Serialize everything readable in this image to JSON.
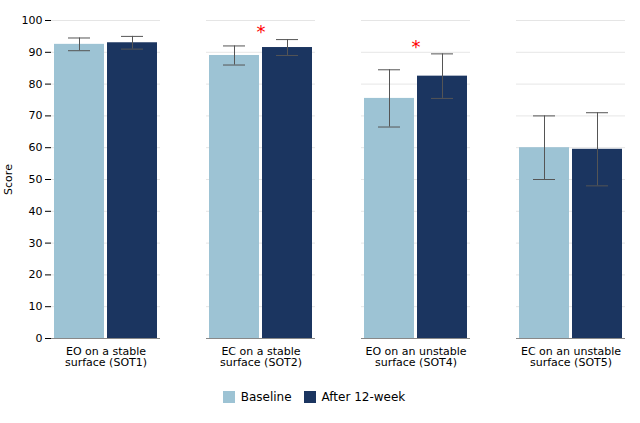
{
  "chart_data": {
    "type": "bar",
    "categories": [
      "EO on a stable\nsurface (SOT1)",
      "EC on a stable\nsurface (SOT2)",
      "EO on an unstable\nsurface (SOT4)",
      "EC on an unstable\nsurface (SOT5)"
    ],
    "series": [
      {
        "name": "Baseline",
        "color": "#9DC3D4",
        "values": [
          92.5,
          89.0,
          75.5,
          60.0
        ],
        "errors": [
          2.0,
          3.0,
          9.0,
          10.0
        ]
      },
      {
        "name": "After 12-week",
        "color": "#1B3560",
        "values": [
          93.0,
          91.5,
          82.5,
          59.5
        ],
        "errors": [
          2.0,
          2.5,
          7.0,
          11.5
        ]
      }
    ],
    "ylabel": "Score",
    "ylim": [
      0,
      100
    ],
    "yticks": [
      0,
      10,
      20,
      30,
      40,
      50,
      60,
      70,
      80,
      90,
      100
    ],
    "grid": true,
    "legend": "bottom",
    "annotations": [
      {
        "text": "*",
        "category": "EC on a stable\nsurface (SOT2)",
        "color": "#FF0000"
      },
      {
        "text": "*",
        "category": "EO on an unstable\nsurface (SOT4)",
        "color": "#FF0000"
      }
    ]
  }
}
